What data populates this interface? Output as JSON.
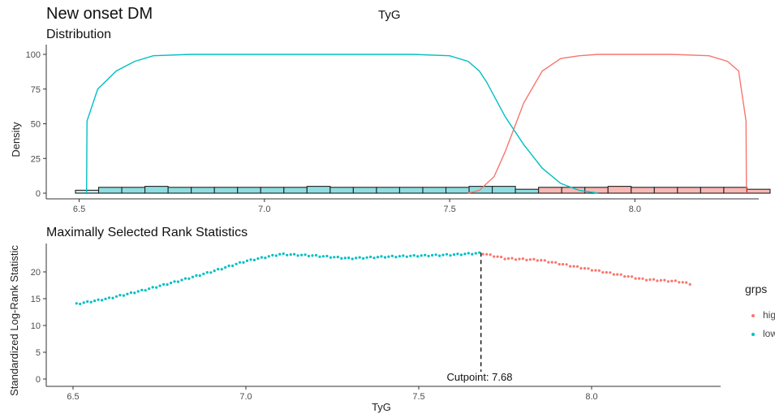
{
  "header": {
    "title": "New onset DM",
    "center_title": "TyG"
  },
  "legend": {
    "title": "grps",
    "items": [
      {
        "label": "hig",
        "color": "#F8766D"
      },
      {
        "label": "low",
        "color": "#00BFC4"
      }
    ]
  },
  "chart_data": [
    {
      "type": "area",
      "title": "Distribution",
      "xlabel": "",
      "ylabel": "Density",
      "xlim": [
        6.49,
        8.33
      ],
      "ylim": [
        0,
        100
      ],
      "xticks": [
        6.5,
        7.0,
        7.5,
        8.0
      ],
      "yticks": [
        0,
        25,
        50,
        75,
        100
      ],
      "series": [
        {
          "name": "low",
          "color": "#00BFC4",
          "x": [
            6.52,
            6.521,
            6.55,
            6.6,
            6.65,
            6.7,
            6.8,
            6.9,
            7.0,
            7.2,
            7.4,
            7.5,
            7.55,
            7.58,
            7.6,
            7.63,
            7.65,
            7.7,
            7.75,
            7.8,
            7.85,
            7.9
          ],
          "y": [
            0,
            52,
            75,
            88,
            95,
            99,
            100,
            100,
            100,
            100,
            100,
            99,
            95,
            88,
            80,
            65,
            55,
            35,
            18,
            7,
            2,
            0
          ]
        },
        {
          "name": "hig",
          "color": "#F8766D",
          "x": [
            7.55,
            7.58,
            7.62,
            7.65,
            7.7,
            7.75,
            7.8,
            7.85,
            7.9,
            8.0,
            8.1,
            8.2,
            8.25,
            8.28,
            8.3,
            8.301
          ],
          "y": [
            0,
            2,
            12,
            30,
            65,
            88,
            97,
            99,
            100,
            100,
            100,
            99,
            95,
            88,
            52,
            0
          ]
        }
      ],
      "histogram": {
        "bin_width": 0.0625,
        "bins": [
          {
            "x": 6.49,
            "count": 3,
            "group": "mixed"
          },
          {
            "x": 6.5525,
            "count": 6,
            "group": "low"
          },
          {
            "x": 6.615,
            "count": 6,
            "group": "low"
          },
          {
            "x": 6.6775,
            "count": 7,
            "group": "low"
          },
          {
            "x": 6.74,
            "count": 6,
            "group": "low"
          },
          {
            "x": 6.8025,
            "count": 6,
            "group": "low"
          },
          {
            "x": 6.865,
            "count": 6,
            "group": "low"
          },
          {
            "x": 6.9275,
            "count": 6,
            "group": "low"
          },
          {
            "x": 6.99,
            "count": 6,
            "group": "low"
          },
          {
            "x": 7.0525,
            "count": 6,
            "group": "low"
          },
          {
            "x": 7.115,
            "count": 7,
            "group": "low"
          },
          {
            "x": 7.1775,
            "count": 6,
            "group": "low"
          },
          {
            "x": 7.24,
            "count": 6,
            "group": "low"
          },
          {
            "x": 7.3025,
            "count": 6,
            "group": "low"
          },
          {
            "x": 7.365,
            "count": 6,
            "group": "low"
          },
          {
            "x": 7.4275,
            "count": 6,
            "group": "low"
          },
          {
            "x": 7.49,
            "count": 6,
            "group": "low"
          },
          {
            "x": 7.5525,
            "count": 7,
            "group": "low"
          },
          {
            "x": 7.615,
            "count": 7,
            "group": "low"
          },
          {
            "x": 7.6775,
            "count": 4,
            "group": "low"
          },
          {
            "x": 7.74,
            "count": 6,
            "group": "hig"
          },
          {
            "x": 7.8025,
            "count": 6,
            "group": "hig"
          },
          {
            "x": 7.865,
            "count": 6,
            "group": "hig"
          },
          {
            "x": 7.9275,
            "count": 7,
            "group": "hig"
          },
          {
            "x": 7.99,
            "count": 6,
            "group": "hig"
          },
          {
            "x": 8.0525,
            "count": 6,
            "group": "hig"
          },
          {
            "x": 8.115,
            "count": 6,
            "group": "hig"
          },
          {
            "x": 8.1775,
            "count": 6,
            "group": "hig"
          },
          {
            "x": 8.24,
            "count": 6,
            "group": "hig"
          },
          {
            "x": 8.3025,
            "count": 4,
            "group": "hig"
          }
        ]
      }
    },
    {
      "type": "scatter",
      "title": "Maximally Selected Rank Statistics",
      "xlabel": "TyG",
      "ylabel": "Standardized Log-Rank Statistic",
      "xlim": [
        6.45,
        8.35
      ],
      "ylim": [
        0,
        24
      ],
      "xticks": [
        6.5,
        7.0,
        7.5,
        8.0
      ],
      "yticks": [
        0,
        5,
        10,
        15,
        20
      ],
      "cutpoint": 7.68,
      "cutpoint_label": "Cutpoint: 7.68",
      "curve": {
        "x": [
          6.51,
          6.6,
          6.7,
          6.8,
          6.9,
          7.0,
          7.1,
          7.2,
          7.3,
          7.4,
          7.5,
          7.6,
          7.68,
          7.75,
          7.85,
          7.95,
          8.05,
          8.15,
          8.25,
          8.29
        ],
        "y": [
          14.0,
          15.0,
          16.5,
          18.2,
          20.0,
          22.0,
          23.3,
          23.0,
          22.5,
          22.8,
          23.0,
          23.2,
          23.5,
          22.5,
          22.2,
          21.0,
          19.8,
          18.6,
          18.2,
          17.7
        ]
      },
      "series": [
        {
          "name": "low",
          "color": "#00BFC4",
          "x_range": [
            6.51,
            7.68
          ]
        },
        {
          "name": "hig",
          "color": "#F8766D",
          "x_range": [
            7.68,
            8.29
          ]
        }
      ]
    }
  ]
}
